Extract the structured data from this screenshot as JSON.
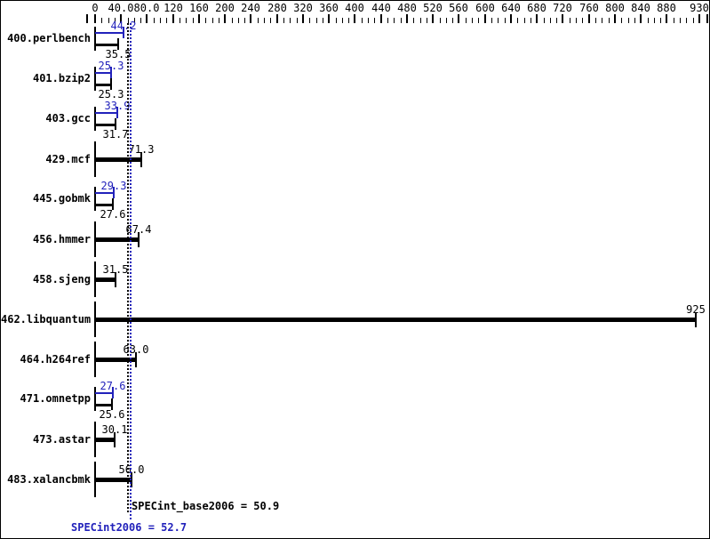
{
  "chart_data": {
    "type": "bar",
    "orientation": "horizontal",
    "title": "",
    "axis": {
      "min": 0,
      "max": 930,
      "minor_tick_step": 10,
      "major_ticks": [
        {
          "value": 0,
          "label": "0"
        },
        {
          "value": 40,
          "label": "40.0"
        },
        {
          "value": 80,
          "label": "80.0"
        },
        {
          "value": 120,
          "label": "120"
        },
        {
          "value": 160,
          "label": "160"
        },
        {
          "value": 200,
          "label": "200"
        },
        {
          "value": 240,
          "label": "240"
        },
        {
          "value": 280,
          "label": "280"
        },
        {
          "value": 320,
          "label": "320"
        },
        {
          "value": 360,
          "label": "360"
        },
        {
          "value": 400,
          "label": "400"
        },
        {
          "value": 440,
          "label": "440"
        },
        {
          "value": 480,
          "label": "480"
        },
        {
          "value": 520,
          "label": "520"
        },
        {
          "value": 560,
          "label": "560"
        },
        {
          "value": 600,
          "label": "600"
        },
        {
          "value": 640,
          "label": "640"
        },
        {
          "value": 680,
          "label": "680"
        },
        {
          "value": 720,
          "label": "720"
        },
        {
          "value": 760,
          "label": "760"
        },
        {
          "value": 800,
          "label": "800"
        },
        {
          "value": 840,
          "label": "840"
        },
        {
          "value": 880,
          "label": "880"
        },
        {
          "value": 930,
          "label": "930"
        }
      ]
    },
    "benchmarks": [
      {
        "name": "400.perlbench",
        "peak": 44.2,
        "peak_label": "44.2",
        "base": 35.5,
        "base_label": "35.5"
      },
      {
        "name": "401.bzip2",
        "peak": 25.3,
        "peak_label": "25.3",
        "base": 25.3,
        "base_label": "25.3"
      },
      {
        "name": "403.gcc",
        "peak": 33.9,
        "peak_label": "33.9",
        "base": 31.7,
        "base_label": "31.7"
      },
      {
        "name": "429.mcf",
        "base": 71.3,
        "base_label": "71.3"
      },
      {
        "name": "445.gobmk",
        "peak": 29.3,
        "peak_label": "29.3",
        "base": 27.6,
        "base_label": "27.6"
      },
      {
        "name": "456.hmmer",
        "base": 67.4,
        "base_label": "67.4"
      },
      {
        "name": "458.sjeng",
        "base": 31.5,
        "base_label": "31.5"
      },
      {
        "name": "462.libquantum",
        "base": 925,
        "base_label": "925"
      },
      {
        "name": "464.h264ref",
        "base": 63.0,
        "base_label": "63.0"
      },
      {
        "name": "471.omnetpp",
        "peak": 27.6,
        "peak_label": "27.6",
        "base": 25.6,
        "base_label": "25.6"
      },
      {
        "name": "473.astar",
        "base": 30.1,
        "base_label": "30.1"
      },
      {
        "name": "483.xalancbmk",
        "base": 56.0,
        "base_label": "56.0"
      }
    ],
    "means": {
      "base_value": 50.9,
      "base_text": "SPECint_base2006 = 50.9",
      "peak_value": 52.7,
      "peak_text": "SPECint2006 = 52.7"
    },
    "colors": {
      "peak_blue": "#2222bb",
      "base_black": "#000000",
      "background": "#ffffff"
    }
  }
}
